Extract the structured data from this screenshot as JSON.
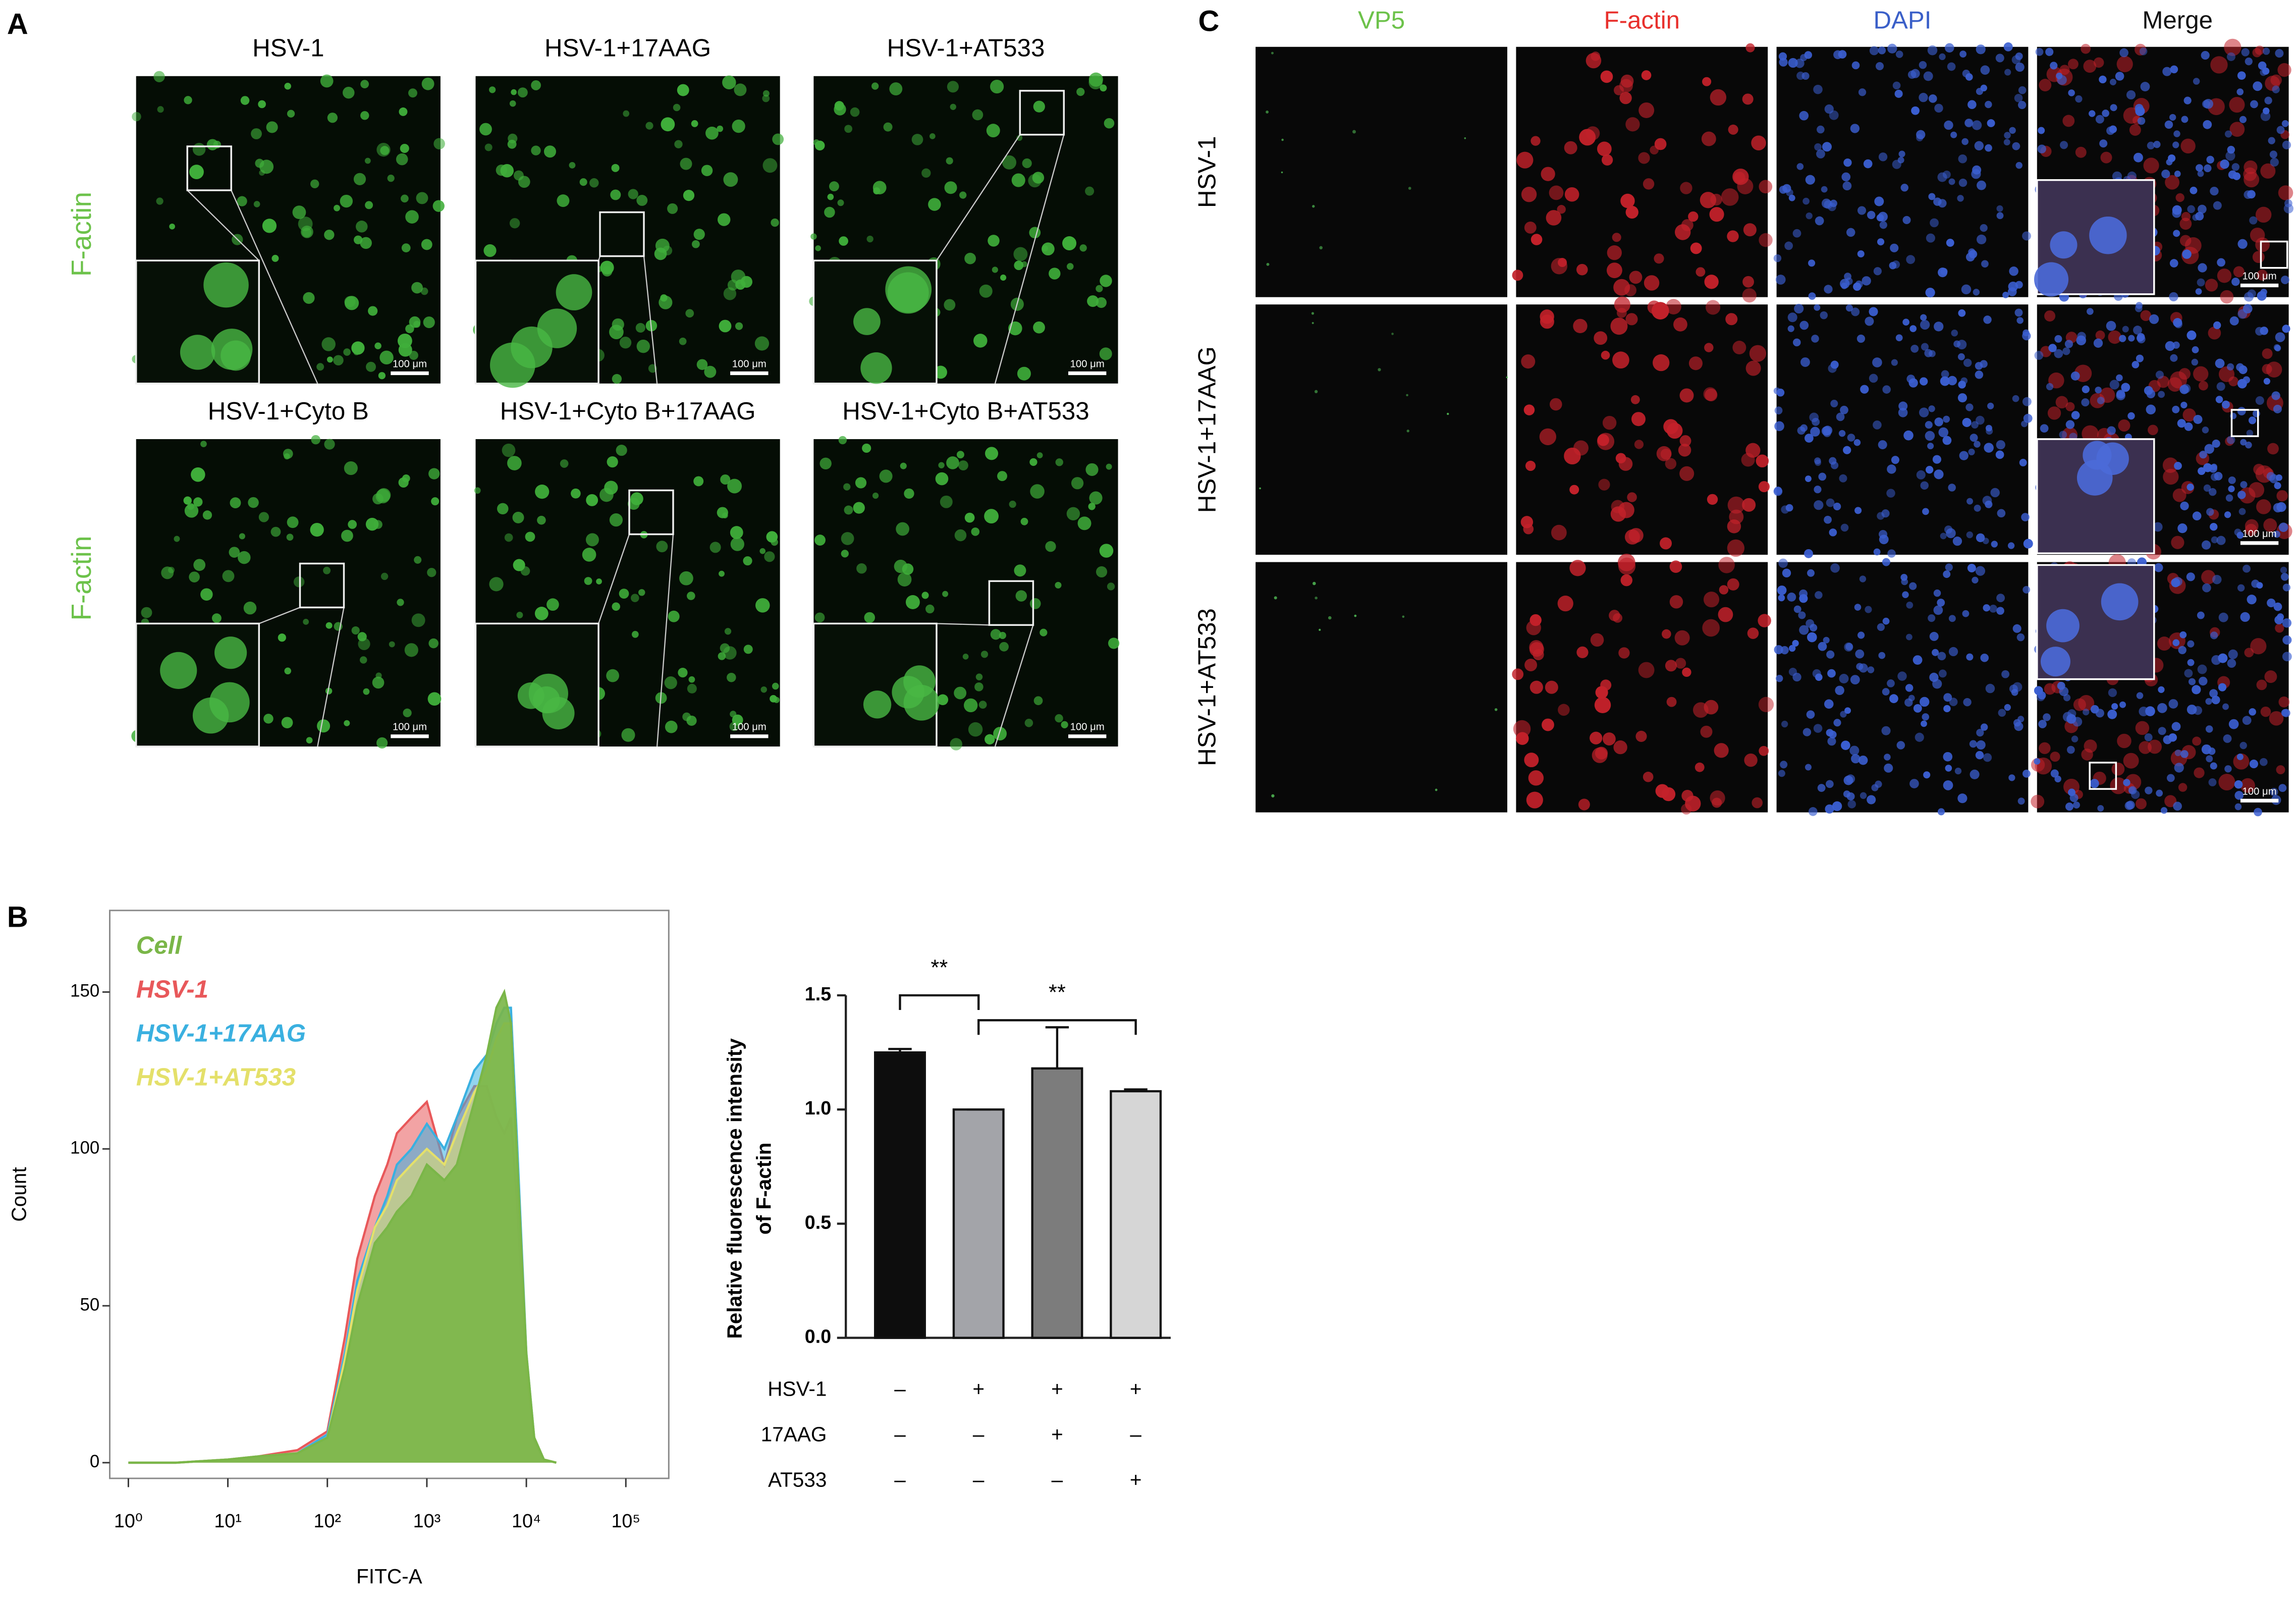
{
  "panel_labels": [
    "A",
    "B",
    "C"
  ],
  "scale_bar_label": "100 μm",
  "panel_a": {
    "side_label": "F-actin",
    "titles": [
      "HSV-1",
      "HSV-1+17AAG",
      "HSV-1+AT533",
      "HSV-1+Cyto B",
      "HSV-1+Cyto B+17AAG",
      "HSV-1+Cyto B+AT533"
    ]
  },
  "panel_c": {
    "columns": [
      "VP5",
      "F-actin",
      "DAPI",
      "Merge"
    ],
    "rows": [
      "HSV-1",
      "HSV-1+17AAG",
      "HSV-1+AT533"
    ]
  },
  "chart_data": [
    {
      "type": "area",
      "xlabel": "FITC-A",
      "ylabel": "Count",
      "xscale": "log",
      "x": [
        1,
        3,
        10,
        20,
        50,
        100,
        150,
        200,
        300,
        400,
        500,
        700,
        1000,
        1500,
        2000,
        3000,
        4000,
        5000,
        6000,
        7000,
        8000,
        10000,
        12000,
        15000,
        20000
      ],
      "series": [
        {
          "name": "Cell",
          "color": "#7ab648",
          "values": [
            0,
            0,
            1,
            2,
            3,
            8,
            30,
            50,
            70,
            75,
            80,
            85,
            95,
            90,
            95,
            115,
            130,
            145,
            150,
            140,
            100,
            35,
            8,
            1,
            0
          ]
        },
        {
          "name": "HSV-1",
          "color": "#e8585a",
          "values": [
            0,
            0,
            1,
            2,
            4,
            10,
            40,
            65,
            85,
            95,
            105,
            110,
            115,
            95,
            110,
            120,
            120,
            110,
            105,
            110,
            85,
            30,
            7,
            1,
            0
          ]
        },
        {
          "name": "HSV-1+17AAG",
          "color": "#3ab0e0",
          "values": [
            0,
            0,
            1,
            2,
            3,
            9,
            35,
            58,
            75,
            85,
            95,
            100,
            108,
            100,
            110,
            125,
            130,
            140,
            145,
            145,
            105,
            35,
            8,
            1,
            0
          ]
        },
        {
          "name": "HSV-1+AT533",
          "color": "#e4e06a",
          "values": [
            0,
            0,
            1,
            2,
            3,
            8,
            33,
            55,
            75,
            82,
            90,
            95,
            100,
            95,
            105,
            118,
            125,
            135,
            140,
            140,
            100,
            33,
            8,
            1,
            0
          ]
        }
      ],
      "xlim": [
        0.65,
        270000
      ],
      "xticks": [
        {
          "value": 1,
          "label": "10⁰"
        },
        {
          "value": 10,
          "label": "10¹"
        },
        {
          "value": 100,
          "label": "10²"
        },
        {
          "value": 1000,
          "label": "10³"
        },
        {
          "value": 10000,
          "label": "10⁴"
        },
        {
          "value": 100000,
          "label": "10⁵"
        }
      ],
      "ylim": [
        -5,
        176
      ],
      "yticks": [
        0,
        50,
        100,
        150
      ]
    },
    {
      "type": "bar",
      "ylabel": [
        "Relative fluorescence intensity",
        "of F-actin"
      ],
      "values": [
        1.25,
        1.0,
        1.18,
        1.08
      ],
      "errors": [
        0.015,
        0,
        0.18,
        0.008
      ],
      "colors": [
        "#0d0d0d",
        "#a3a4a9",
        "#7c7c7c",
        "#d6d6d6"
      ],
      "ylim": [
        0,
        1.5
      ],
      "yticks": [
        {
          "value": 0,
          "label": "0.0"
        },
        0.5,
        {
          "value": 1,
          "label": "1.0"
        },
        1.5
      ],
      "significance": [
        {
          "from": 0,
          "to": 1,
          "label": "**"
        },
        {
          "from": 1,
          "to": 3,
          "label": "**"
        }
      ],
      "conditions": [
        {
          "label": "HSV-1",
          "signs": [
            "–",
            "+",
            "+",
            "+"
          ]
        },
        {
          "label": "17AAG",
          "signs": [
            "–",
            "–",
            "+",
            "–"
          ]
        },
        {
          "label": "AT533",
          "signs": [
            "–",
            "–",
            "–",
            "+"
          ]
        }
      ]
    }
  ]
}
